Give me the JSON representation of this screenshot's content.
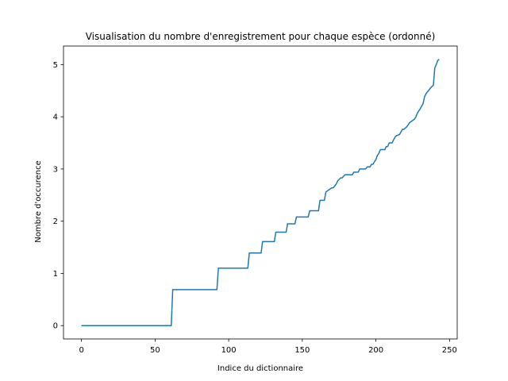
{
  "chart_data": {
    "type": "line",
    "title": "Visualisation du nombre d'enregistrement pour chaque espèce (ordonné)",
    "xlabel": "Indice du dictionnaire",
    "ylabel": "Nombre d'occurence",
    "xlim": [
      -12.2,
      255.2
    ],
    "ylim": [
      -0.255,
      5.355
    ],
    "xticks": [
      0,
      50,
      100,
      150,
      200,
      250
    ],
    "yticks": [
      0,
      1,
      2,
      3,
      4,
      5
    ],
    "grid": false,
    "legend": "none",
    "series_color": "#1f77b4",
    "series": [
      {
        "x": [
          0,
          61,
          62,
          92,
          93,
          113,
          114,
          122,
          123,
          131,
          132,
          139,
          140,
          145,
          146,
          154,
          155,
          161,
          162,
          165,
          166,
          170,
          171,
          173,
          174,
          176,
          177,
          179,
          180,
          184,
          185,
          188,
          189,
          193,
          194,
          196,
          197,
          198,
          199,
          200,
          201,
          202,
          203,
          206,
          207,
          208,
          209,
          211,
          212,
          213,
          214,
          216,
          217,
          218,
          219,
          221,
          222,
          223,
          224,
          225,
          226,
          227,
          228,
          229,
          230,
          231,
          232,
          233,
          234,
          235,
          236,
          237,
          238,
          239,
          240,
          241,
          242,
          243
        ],
        "y": [
          0,
          0,
          0.69,
          0.69,
          1.1,
          1.1,
          1.39,
          1.39,
          1.61,
          1.61,
          1.79,
          1.79,
          1.95,
          1.95,
          2.08,
          2.08,
          2.2,
          2.2,
          2.4,
          2.4,
          2.56,
          2.64,
          2.64,
          2.71,
          2.77,
          2.83,
          2.83,
          2.89,
          2.89,
          2.89,
          2.94,
          2.94,
          3.0,
          3.0,
          3.04,
          3.04,
          3.09,
          3.09,
          3.14,
          3.18,
          3.26,
          3.3,
          3.37,
          3.37,
          3.43,
          3.43,
          3.5,
          3.5,
          3.56,
          3.61,
          3.64,
          3.66,
          3.71,
          3.76,
          3.76,
          3.81,
          3.85,
          3.89,
          3.91,
          3.93,
          3.95,
          3.99,
          4.06,
          4.11,
          4.15,
          4.2,
          4.25,
          4.38,
          4.44,
          4.48,
          4.51,
          4.55,
          4.58,
          4.6,
          4.94,
          5.0,
          5.08,
          5.1
        ]
      }
    ]
  }
}
